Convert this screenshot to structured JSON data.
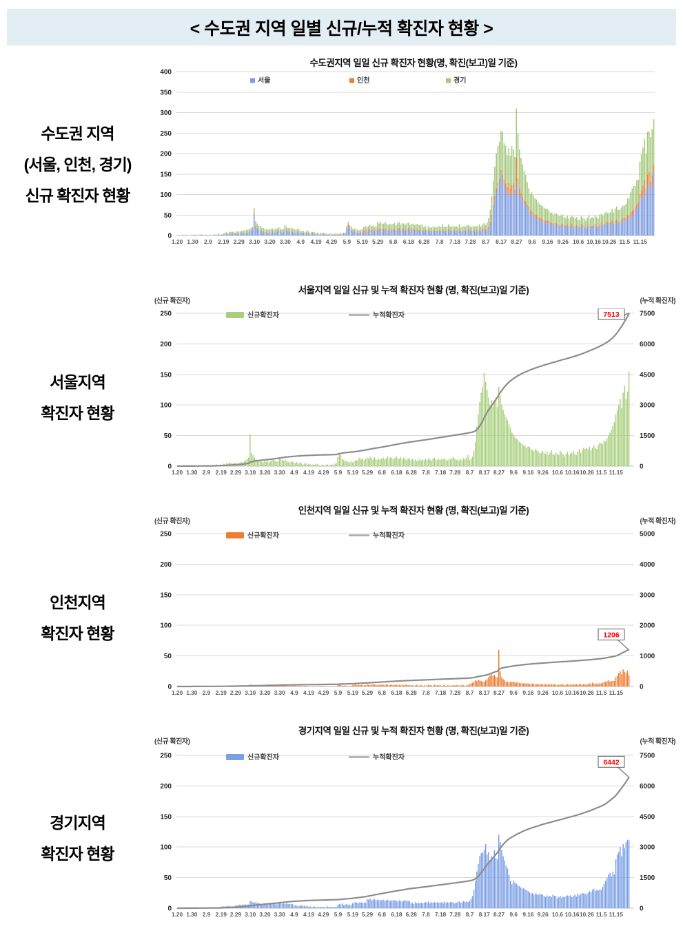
{
  "page_title": "< 수도권 지역 일별 신규/누적 확진자 현황 >",
  "colors": {
    "band_bg": "#E2EDF4",
    "grid": "#D9D9D9",
    "axis_line": "#BFBFBF",
    "tick_text": "#262626",
    "xtick_text": "#595959",
    "cumulative_line": "#8C8C8C",
    "annotation_text": "#FF0000",
    "annotation_border": "#595959",
    "seoul_blue": "#7C9BE0",
    "incheon_orange": "#ED7D31",
    "gyeonggi_green": "#A5C97E",
    "seoul_bar_green": "#A9CF7E",
    "gyeonggi_bar_blue": "#7C9FE4"
  },
  "sections": [
    {
      "side_label": [
        "수도권 지역",
        "(서울, 인천, 경기)",
        "신규 확진자 현황"
      ],
      "title": "수도권지역 일일 신규 확진자 현황(명, 확진(보고)일 기준)"
    },
    {
      "side_label": [
        "서울지역",
        "확진자 현황"
      ],
      "title": "서울지역 일일 신규 및 누적 확진자 현황 (명, 확진(보고)일 기준)",
      "left_caption": "(신규 확진자)",
      "right_caption": "(누적 확진자)"
    },
    {
      "side_label": [
        "인천지역",
        "확진자 현황"
      ],
      "title": "인천지역 일일 신규 및 누적 확진자 현황 (명, 확진(보고)일 기준)",
      "left_caption": "(신규 확진자)",
      "right_caption": "(누적 확진자)"
    },
    {
      "side_label": [
        "경기지역",
        "확진자 현황"
      ],
      "title": "경기지역 일일 신규 및 누적 확진자 현황 (명, 확진(보고)일 기준)",
      "left_caption": "(신규 확진자)",
      "right_caption": "(누적 확진자)"
    }
  ],
  "chart_data": {
    "n_days": 310,
    "x_tick_labels": [
      "1.20",
      "1.30",
      "2.9",
      "2.19",
      "2.29",
      "3.10",
      "3.20",
      "3.30",
      "4.9",
      "4.19",
      "4.29",
      "5.9",
      "5.19",
      "5.29",
      "6.8",
      "6.18",
      "6.28",
      "7.8",
      "7.18",
      "7.28",
      "8.7",
      "8.17",
      "8.27",
      "9.6",
      "9.16",
      "9.26",
      "10.6",
      "10.16",
      "10.26",
      "11.5",
      "11.15"
    ],
    "daily_new_cases": {
      "서울": [
        0,
        1,
        0,
        0,
        1,
        0,
        1,
        0,
        0,
        1,
        1,
        0,
        1,
        1,
        0,
        2,
        1,
        0,
        1,
        1,
        0,
        1,
        0,
        0,
        2,
        1,
        1,
        3,
        2,
        2,
        3,
        2,
        4,
        3,
        5,
        4,
        6,
        5,
        4,
        6,
        5,
        4,
        6,
        5,
        7,
        6,
        8,
        10,
        12,
        14,
        52,
        22,
        18,
        14,
        12,
        10,
        8,
        9,
        7,
        6,
        8,
        7,
        9,
        6,
        8,
        10,
        12,
        9,
        7,
        8,
        14,
        12,
        10,
        9,
        11,
        8,
        7,
        6,
        8,
        7,
        6,
        5,
        7,
        4,
        6,
        5,
        3,
        4,
        5,
        3,
        4,
        3,
        2,
        3,
        2,
        4,
        3,
        2,
        1,
        2,
        2,
        1,
        2,
        3,
        1,
        2,
        3,
        2,
        4,
        5,
        15,
        22,
        18,
        12,
        10,
        8,
        9,
        7,
        6,
        8,
        6,
        8,
        10,
        9,
        12,
        14,
        11,
        13,
        10,
        12,
        14,
        12,
        16,
        13,
        11,
        15,
        12,
        10,
        13,
        11,
        12,
        14,
        11,
        13,
        16,
        12,
        15,
        13,
        11,
        14,
        16,
        13,
        12,
        15,
        11,
        14,
        12,
        10,
        13,
        12,
        10,
        12,
        9,
        11,
        8,
        10,
        12,
        9,
        11,
        10,
        12,
        10,
        13,
        11,
        9,
        12,
        14,
        11,
        10,
        12,
        10,
        12,
        11,
        13,
        10,
        9,
        12,
        11,
        13,
        15,
        12,
        10,
        11,
        9,
        12,
        10,
        13,
        11,
        14,
        18,
        10,
        12,
        16,
        25,
        40,
        65,
        85,
        105,
        120,
        130,
        152,
        138,
        125,
        112,
        100,
        108,
        98,
        104,
        112,
        97,
        130,
        115,
        100,
        92,
        85,
        80,
        75,
        68,
        62,
        55,
        52,
        48,
        45,
        43,
        40,
        38,
        36,
        34,
        33,
        30,
        32,
        32,
        28,
        26,
        25,
        28,
        26,
        24,
        21,
        22,
        25,
        22,
        20,
        24,
        18,
        22,
        26,
        20,
        18,
        22,
        20,
        18,
        25,
        22,
        19,
        16,
        20,
        24,
        18,
        21,
        22,
        25,
        20,
        18,
        24,
        28,
        22,
        26,
        30,
        28,
        30,
        28,
        32,
        26,
        30,
        34,
        30,
        28,
        35,
        38,
        38,
        36,
        42,
        40,
        46,
        50,
        55,
        60,
        66,
        72,
        85,
        92,
        100,
        110,
        95,
        120,
        132,
        110,
        122,
        155
      ],
      "인천": [
        0,
        0,
        0,
        0,
        1,
        0,
        0,
        0,
        0,
        0,
        0,
        1,
        0,
        0,
        0,
        0,
        1,
        0,
        0,
        0,
        0,
        0,
        1,
        0,
        0,
        0,
        0,
        1,
        0,
        0,
        0,
        1,
        1,
        0,
        1,
        1,
        0,
        1,
        0,
        1,
        1,
        1,
        0,
        1,
        1,
        1,
        1,
        0,
        1,
        1,
        3,
        2,
        1,
        1,
        1,
        1,
        1,
        0,
        1,
        1,
        1,
        1,
        2,
        1,
        1,
        0,
        1,
        1,
        1,
        1,
        2,
        1,
        1,
        2,
        1,
        1,
        1,
        1,
        1,
        1,
        1,
        1,
        0,
        1,
        1,
        1,
        0,
        1,
        1,
        1,
        0,
        1,
        0,
        1,
        0,
        1,
        0,
        1,
        0,
        1,
        1,
        0,
        1,
        0,
        1,
        0,
        1,
        0,
        1,
        0,
        3,
        4,
        2,
        2,
        1,
        2,
        1,
        1,
        1,
        1,
        2,
        3,
        4,
        2,
        3,
        2,
        3,
        2,
        2,
        2,
        4,
        3,
        2,
        3,
        4,
        3,
        3,
        2,
        3,
        3,
        3,
        3,
        2,
        4,
        3,
        2,
        3,
        3,
        2,
        3,
        3,
        2,
        3,
        2,
        3,
        2,
        3,
        3,
        2,
        2,
        2,
        2,
        1,
        2,
        3,
        1,
        2,
        2,
        1,
        2,
        1,
        2,
        3,
        2,
        2,
        1,
        3,
        2,
        2,
        2,
        2,
        1,
        2,
        3,
        1,
        2,
        2,
        1,
        2,
        2,
        2,
        2,
        3,
        1,
        2,
        3,
        2,
        1,
        2,
        2,
        4,
        5,
        6,
        8,
        10,
        9,
        11,
        10,
        9,
        8,
        8,
        10,
        12,
        15,
        18,
        20,
        17,
        19,
        16,
        15,
        60,
        25,
        15,
        12,
        10,
        8,
        8,
        7,
        8,
        7,
        8,
        7,
        6,
        7,
        6,
        5,
        6,
        5,
        5,
        5,
        5,
        4,
        4,
        5,
        4,
        3,
        4,
        4,
        3,
        4,
        4,
        3,
        4,
        3,
        4,
        3,
        4,
        3,
        4,
        3,
        2,
        3,
        3,
        4,
        3,
        2,
        3,
        4,
        3,
        3,
        3,
        4,
        3,
        4,
        3,
        4,
        4,
        3,
        4,
        3,
        3,
        4,
        5,
        4,
        6,
        5,
        4,
        5,
        4,
        5,
        5,
        6,
        8,
        7,
        9,
        10,
        8,
        9,
        9,
        9,
        15,
        18,
        22,
        25,
        20,
        28,
        24,
        22,
        26,
        18
      ],
      "경기": [
        0,
        0,
        1,
        0,
        0,
        0,
        1,
        0,
        0,
        0,
        0,
        1,
        1,
        0,
        1,
        1,
        0,
        1,
        0,
        1,
        1,
        1,
        0,
        1,
        1,
        1,
        1,
        1,
        0,
        1,
        2,
        3,
        3,
        3,
        3,
        4,
        3,
        3,
        3,
        3,
        4,
        5,
        5,
        6,
        5,
        6,
        6,
        6,
        6,
        6,
        12,
        11,
        10,
        9,
        10,
        8,
        9,
        7,
        7,
        7,
        7,
        8,
        6,
        7,
        8,
        7,
        7,
        7,
        6,
        7,
        9,
        8,
        7,
        8,
        7,
        8,
        7,
        7,
        7,
        7,
        4,
        5,
        4,
        3,
        4,
        5,
        4,
        4,
        3,
        4,
        2,
        3,
        2,
        2,
        3,
        2,
        2,
        2,
        2,
        2,
        2,
        2,
        1,
        3,
        2,
        2,
        2,
        2,
        2,
        2,
        5,
        7,
        6,
        8,
        5,
        6,
        7,
        5,
        6,
        5,
        8,
        9,
        10,
        9,
        8,
        10,
        9,
        9,
        9,
        9,
        15,
        14,
        16,
        13,
        14,
        15,
        13,
        14,
        13,
        13,
        13,
        14,
        12,
        13,
        14,
        13,
        12,
        13,
        13,
        13,
        12,
        11,
        13,
        12,
        11,
        12,
        13,
        12,
        12,
        12,
        8,
        9,
        7,
        10,
        8,
        9,
        8,
        9,
        8,
        9,
        10,
        9,
        11,
        8,
        10,
        9,
        10,
        9,
        10,
        9,
        9,
        10,
        8,
        11,
        9,
        10,
        9,
        10,
        10,
        9,
        8,
        9,
        10,
        11,
        9,
        10,
        12,
        10,
        11,
        10,
        12,
        15,
        20,
        30,
        45,
        60,
        72,
        85,
        90,
        91,
        95,
        105,
        88,
        92,
        78,
        85,
        80,
        95,
        82,
        80,
        120,
        108,
        95,
        85,
        78,
        70,
        65,
        55,
        45,
        39,
        45,
        42,
        40,
        38,
        36,
        34,
        32,
        33,
        30,
        30,
        28,
        26,
        24,
        25,
        22,
        24,
        23,
        22,
        23,
        23,
        22,
        20,
        18,
        21,
        19,
        20,
        18,
        22,
        20,
        20,
        16,
        18,
        20,
        17,
        19,
        18,
        20,
        21,
        20,
        21,
        18,
        20,
        22,
        19,
        24,
        21,
        23,
        25,
        24,
        24,
        22,
        25,
        28,
        26,
        30,
        32,
        28,
        30,
        29,
        30,
        30,
        35,
        40,
        45,
        50,
        55,
        58,
        52,
        60,
        55,
        80,
        88,
        92,
        100,
        85,
        105,
        98,
        108,
        112,
        111
      ]
    },
    "cumulative_totals": {
      "서울": 7513,
      "인천": 1206,
      "경기": 6442
    },
    "charts": [
      {
        "name": "metro-daily-stacked",
        "type": "bar",
        "stacked": true,
        "series": [
          "서울",
          "인천",
          "경기"
        ],
        "series_colors": {
          "서울": "#7C9BE0",
          "인천": "#ED7D31",
          "경기": "#A5C97E"
        },
        "ylim": [
          0,
          400
        ],
        "yticks": [
          400,
          350,
          300,
          250,
          200,
          150,
          100,
          50,
          0
        ],
        "legend": [
          {
            "swatch": "square",
            "color": "#7C9BE0",
            "label": "서울"
          },
          {
            "swatch": "square",
            "color": "#ED7D31",
            "label": "인천"
          },
          {
            "swatch": "square",
            "color": "#A5C97E",
            "label": "경기"
          }
        ]
      },
      {
        "name": "seoul-daily-cumulative",
        "type": "bar+line",
        "bar_series": "서울",
        "bar_color": "#A9CF7E",
        "left_ylim": [
          0,
          250
        ],
        "left_ticks": [
          250,
          200,
          150,
          100,
          50,
          0
        ],
        "right_ylim": [
          0,
          7500
        ],
        "right_ticks": [
          7500,
          6000,
          4500,
          3000,
          1500,
          0
        ],
        "annotation": "7513",
        "legend": [
          {
            "swatch": "bar",
            "color": "#A9CF7E",
            "label": "신규확진자"
          },
          {
            "swatch": "line",
            "color": "#A6A6A6",
            "label": "누적확진자"
          }
        ]
      },
      {
        "name": "incheon-daily-cumulative",
        "type": "bar+line",
        "bar_series": "인천",
        "bar_color": "#ED7D31",
        "left_ylim": [
          0,
          250
        ],
        "left_ticks": [
          250,
          200,
          150,
          100,
          50,
          0
        ],
        "right_ylim": [
          0,
          5000
        ],
        "right_ticks": [
          5000,
          4000,
          3000,
          2000,
          1000,
          0
        ],
        "annotation": "1206",
        "legend": [
          {
            "swatch": "bar",
            "color": "#ED7D31",
            "label": "신규확진자"
          },
          {
            "swatch": "line",
            "color": "#A6A6A6",
            "label": "누적확진자"
          }
        ]
      },
      {
        "name": "gyeonggi-daily-cumulative",
        "type": "bar+line",
        "bar_series": "경기",
        "bar_color": "#7C9FE4",
        "left_ylim": [
          0,
          250
        ],
        "left_ticks": [
          250,
          200,
          150,
          100,
          50,
          0
        ],
        "right_ylim": [
          0,
          7500
        ],
        "right_ticks": [
          7500,
          6000,
          4500,
          3000,
          1500,
          0
        ],
        "annotation": "6442",
        "legend": [
          {
            "swatch": "bar",
            "color": "#7C9FE4",
            "label": "신규확진자"
          },
          {
            "swatch": "line",
            "color": "#A6A6A6",
            "label": "누적확진자"
          }
        ]
      }
    ]
  }
}
